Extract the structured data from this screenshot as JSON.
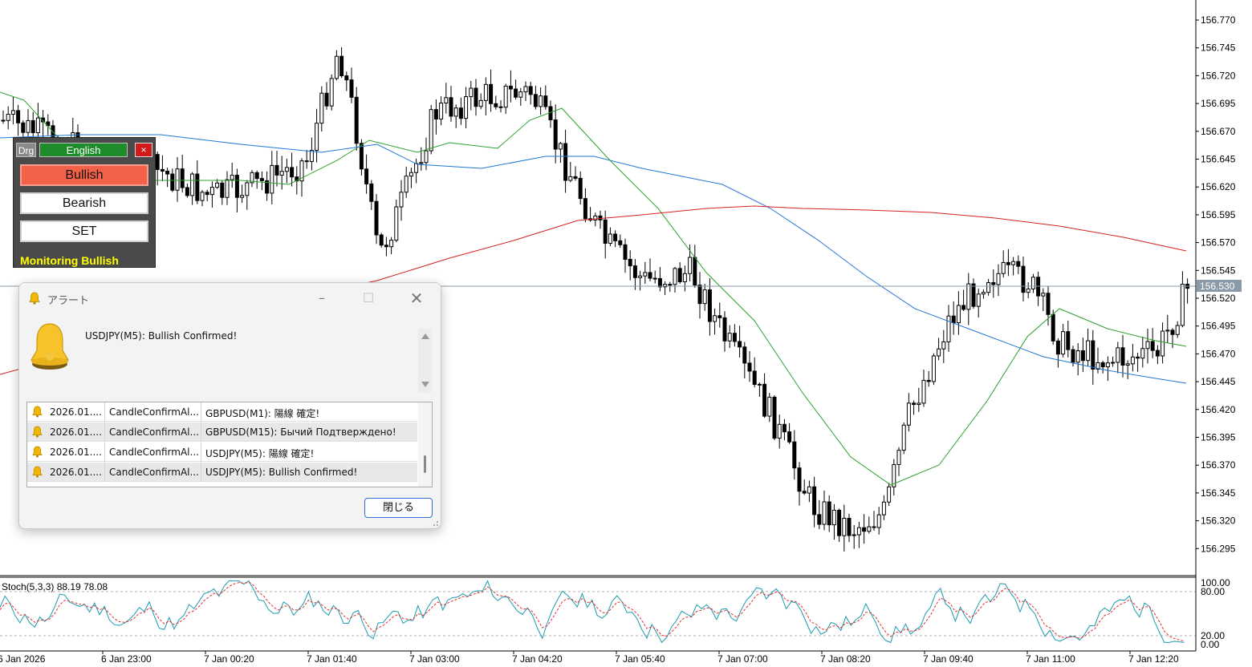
{
  "price_axis": {
    "labels": [
      "156.770",
      "156.745",
      "156.720",
      "156.695",
      "156.670",
      "156.645",
      "156.620",
      "156.595",
      "156.570",
      "156.545",
      "156.520",
      "156.495",
      "156.470",
      "156.445",
      "156.420",
      "156.395",
      "156.370",
      "156.345",
      "156.320",
      "156.295"
    ],
    "current_price": "156.530"
  },
  "time_axis": {
    "labels": [
      "6 Jan 2026",
      "6 Jan 23:00",
      "7 Jan 00:20",
      "7 Jan 01:40",
      "7 Jan 03:00",
      "7 Jan 04:20",
      "7 Jan 05:40",
      "7 Jan 07:00",
      "7 Jan 08:20",
      "7 Jan 09:40",
      "7 Jan 11:00",
      "7 Jan 12:20"
    ]
  },
  "indicator": {
    "label": "Stoch(5,3,3) 88.19 78.08",
    "levels": [
      "100.00",
      "80.00",
      "20.00",
      "0.00"
    ]
  },
  "colors": {
    "ma_fast": "#2ca02c",
    "ma_mid": "#1f77d4",
    "ma_slow": "#d62020",
    "stoch_main": "#1a9bb0",
    "stoch_signal": "#e03030",
    "bullish_button": "#f26148",
    "language_button": "#1e8c2a",
    "monitor_text": "#ffff00"
  },
  "panel": {
    "drag_label": "Drg",
    "language_label": "English",
    "close_label": "×",
    "bullish_label": "Bullish",
    "bearish_label": "Bearish",
    "set_label": "SET",
    "status": "Monitoring Bullish"
  },
  "dialog": {
    "title": "アラート",
    "message": "USDJPY(M5): Bullish Confirmed!",
    "close_button": "閉じる",
    "rows": [
      {
        "time": "2026.01....",
        "source": "CandleConfirmAl...",
        "text": "GBPUSD(M1): 陽線 確定!"
      },
      {
        "time": "2026.01....",
        "source": "CandleConfirmAl...",
        "text": "GBPUSD(M15): Бычий Подтверждено!"
      },
      {
        "time": "2026.01....",
        "source": "CandleConfirmAl...",
        "text": "USDJPY(M5): 陽線 確定!"
      },
      {
        "time": "2026.01....",
        "source": "CandleConfirmAl...",
        "text": "USDJPY(M5): Bullish Confirmed!"
      }
    ]
  },
  "icons": {
    "alert": "bell-icon",
    "minimize": "minimize-icon",
    "maximize": "maximize-icon",
    "close": "close-icon"
  }
}
